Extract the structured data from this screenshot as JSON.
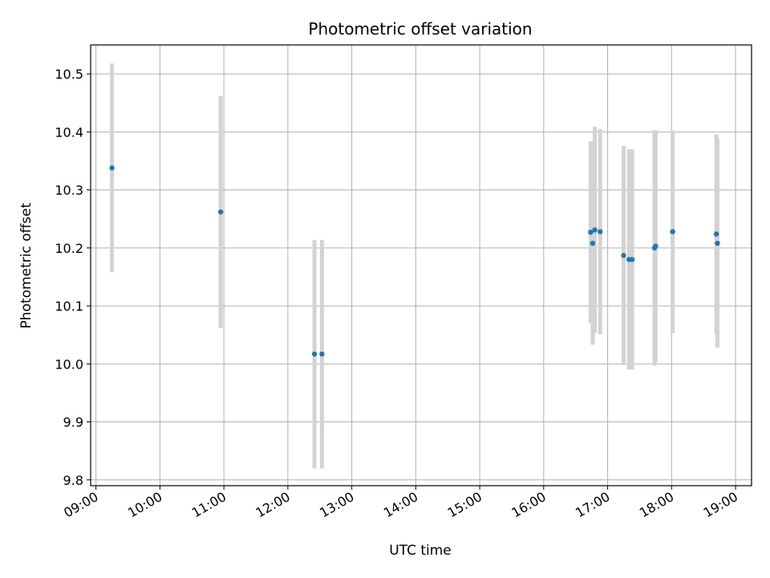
{
  "chart_data": {
    "type": "scatter",
    "title": "Photometric offset variation",
    "xlabel": "UTC time",
    "ylabel": "Photometric offset",
    "x_ticks": [
      "09:00",
      "10:00",
      "11:00",
      "12:00",
      "13:00",
      "14:00",
      "15:00",
      "16:00",
      "17:00",
      "18:00",
      "19:00"
    ],
    "y_ticks": [
      "9.8",
      "9.9",
      "10.0",
      "10.1",
      "10.2",
      "10.3",
      "10.4",
      "10.5"
    ],
    "xlim": [
      "08:55",
      "19:15"
    ],
    "ylim": [
      9.79,
      10.55
    ],
    "grid": true,
    "colors": {
      "point": "#1f77b4",
      "errorbar": "#d3d3d3",
      "grid": "#b0b0b0"
    },
    "points": [
      {
        "x": "09:15",
        "y": 10.338,
        "err": 0.18
      },
      {
        "x": "10:57",
        "y": 10.262,
        "err": 0.2
      },
      {
        "x": "12:25",
        "y": 10.017,
        "err": 0.197
      },
      {
        "x": "12:32",
        "y": 10.017,
        "err": 0.197
      },
      {
        "x": "16:44",
        "y": 10.227,
        "err": 0.157
      },
      {
        "x": "16:46",
        "y": 10.208,
        "err": 0.175
      },
      {
        "x": "16:48",
        "y": 10.231,
        "err": 0.178
      },
      {
        "x": "16:53",
        "y": 10.228,
        "err": 0.177
      },
      {
        "x": "17:15",
        "y": 10.187,
        "err": 0.189
      },
      {
        "x": "17:20",
        "y": 10.18,
        "err": 0.19
      },
      {
        "x": "17:23",
        "y": 10.18,
        "err": 0.19
      },
      {
        "x": "17:44",
        "y": 10.2,
        "err": 0.203
      },
      {
        "x": "17:45",
        "y": 10.203,
        "err": 0.2
      },
      {
        "x": "18:01",
        "y": 10.228,
        "err": 0.175
      },
      {
        "x": "18:42",
        "y": 10.224,
        "err": 0.172
      },
      {
        "x": "18:43",
        "y": 10.208,
        "err": 0.18
      }
    ]
  }
}
